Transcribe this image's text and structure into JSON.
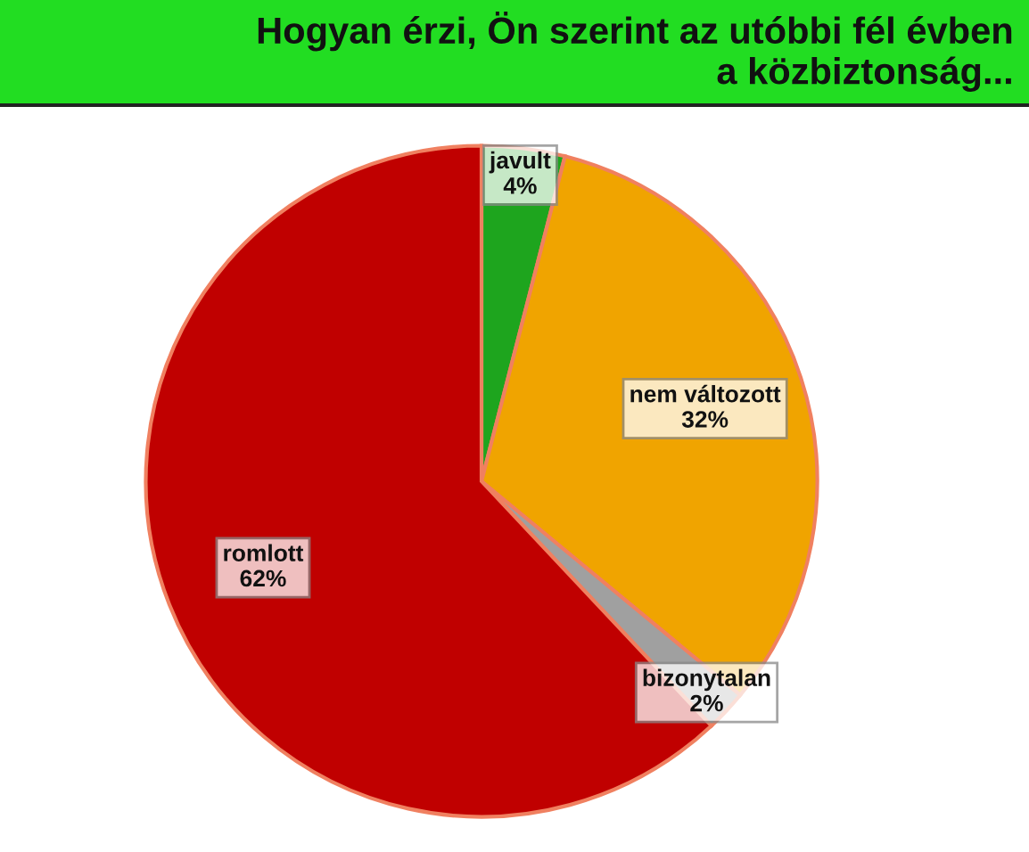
{
  "chart_data": {
    "type": "pie",
    "title": "Hogyan érzi, Ön szerint az utóbbi fél évben\na közbiztonság...",
    "categories": [
      "javult",
      "nem változott",
      "bizonytalan",
      "romlott"
    ],
    "values": [
      4,
      32,
      2,
      62
    ],
    "value_labels": [
      "4%",
      "32%",
      "2%",
      "62%"
    ],
    "colors": [
      "#1ea51e",
      "#f0a400",
      "#a0a0a0",
      "#c00000"
    ]
  }
}
